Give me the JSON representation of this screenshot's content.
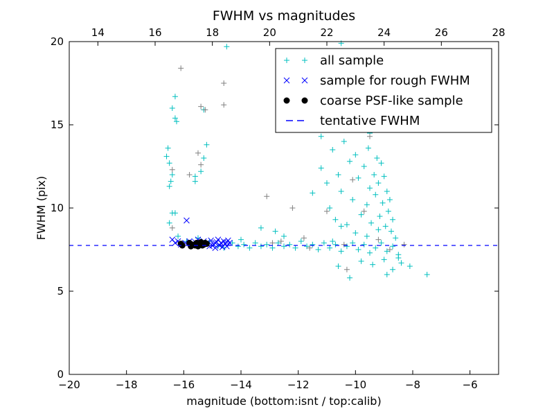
{
  "chart_data": {
    "type": "scatter",
    "title": "FWHM vs magnitudes",
    "xlabel": "magnitude (bottom:isnt / top:calib)",
    "ylabel": "FWHM (pix)",
    "xlim": [
      -20,
      -5
    ],
    "ylim": [
      0,
      20
    ],
    "x_ticks": [
      -20,
      -18,
      -16,
      -14,
      -12,
      -10,
      -8,
      -6
    ],
    "x_tick_labels": [
      "−20",
      "−18",
      "−16",
      "−14",
      "−12",
      "−10",
      "−8",
      "−6"
    ],
    "y_ticks": [
      0,
      5,
      10,
      15,
      20
    ],
    "y_tick_labels": [
      "0",
      "5",
      "10",
      "15",
      "20"
    ],
    "top_axis": {
      "offset": 33,
      "ticks": [
        14,
        16,
        18,
        20,
        22,
        24,
        26,
        28
      ],
      "tick_labels": [
        "14",
        "16",
        "18",
        "20",
        "22",
        "24",
        "26",
        "28"
      ]
    },
    "grid": false,
    "legend_position": "top-right",
    "tentative_fwhm": 7.75,
    "series": [
      {
        "name": "all sample",
        "marker": "plus",
        "color": "#00BFBF",
        "points": [
          [
            -16.6,
            13.1
          ],
          [
            -16.55,
            13.6
          ],
          [
            -16.5,
            12.7
          ],
          [
            -16.4,
            12.0
          ],
          [
            -16.45,
            11.6
          ],
          [
            -16.5,
            11.3
          ],
          [
            -16.3,
            16.7
          ],
          [
            -16.3,
            15.4
          ],
          [
            -16.25,
            15.2
          ],
          [
            -16.4,
            16.0
          ],
          [
            -16.5,
            9.1
          ],
          [
            -16.4,
            9.7
          ],
          [
            -16.3,
            9.7
          ],
          [
            -15.6,
            11.9
          ],
          [
            -15.6,
            11.6
          ],
          [
            -15.4,
            12.2
          ],
          [
            -15.3,
            13.0
          ],
          [
            -15.2,
            13.8
          ],
          [
            -15.3,
            15.9
          ],
          [
            -16.2,
            8.3
          ],
          [
            -15.9,
            8.0
          ],
          [
            -15.5,
            8.2
          ],
          [
            -15.1,
            8.0
          ],
          [
            -14.8,
            7.7
          ],
          [
            -14.6,
            7.6
          ],
          [
            -14.3,
            7.9
          ],
          [
            -14.1,
            7.7
          ],
          [
            -13.9,
            7.8
          ],
          [
            -13.7,
            7.6
          ],
          [
            -13.5,
            7.9
          ],
          [
            -13.3,
            7.7
          ],
          [
            -13.1,
            7.8
          ],
          [
            -12.9,
            7.6
          ],
          [
            -12.7,
            7.9
          ],
          [
            -12.5,
            7.7
          ],
          [
            -12.3,
            7.8
          ],
          [
            -12.1,
            7.6
          ],
          [
            -11.9,
            8.0
          ],
          [
            -11.7,
            7.7
          ],
          [
            -11.5,
            7.8
          ],
          [
            -11.3,
            7.5
          ],
          [
            -11.1,
            7.9
          ],
          [
            -10.9,
            7.6
          ],
          [
            -10.7,
            7.8
          ],
          [
            -10.5,
            7.4
          ],
          [
            -10.3,
            7.7
          ],
          [
            -10.1,
            7.9
          ],
          [
            -9.9,
            7.5
          ],
          [
            -9.7,
            7.8
          ],
          [
            -9.5,
            7.3
          ],
          [
            -9.3,
            7.6
          ],
          [
            -9.1,
            7.9
          ],
          [
            -8.9,
            7.4
          ],
          [
            -8.7,
            7.7
          ],
          [
            -8.5,
            7.2
          ],
          [
            -13.3,
            8.8
          ],
          [
            -12.8,
            8.6
          ],
          [
            -12.5,
            8.3
          ],
          [
            -14.0,
            8.1
          ],
          [
            -11.5,
            10.9
          ],
          [
            -11.2,
            12.4
          ],
          [
            -11.0,
            11.5
          ],
          [
            -10.9,
            10.0
          ],
          [
            -10.8,
            13.5
          ],
          [
            -10.7,
            9.3
          ],
          [
            -10.6,
            12.0
          ],
          [
            -10.5,
            11.0
          ],
          [
            -10.4,
            14.0
          ],
          [
            -10.3,
            9.0
          ],
          [
            -10.2,
            12.8
          ],
          [
            -10.1,
            10.5
          ],
          [
            -10.0,
            13.2
          ],
          [
            -9.9,
            11.8
          ],
          [
            -9.8,
            9.6
          ],
          [
            -9.75,
            14.8
          ],
          [
            -9.7,
            12.5
          ],
          [
            -9.6,
            10.2
          ],
          [
            -9.55,
            13.6
          ],
          [
            -9.5,
            11.2
          ],
          [
            -9.45,
            9.1
          ],
          [
            -9.4,
            15.7
          ],
          [
            -9.35,
            12.0
          ],
          [
            -9.3,
            10.8
          ],
          [
            -9.25,
            13.0
          ],
          [
            -9.2,
            11.5
          ],
          [
            -9.15,
            9.5
          ],
          [
            -9.1,
            12.7
          ],
          [
            -9.05,
            10.3
          ],
          [
            -9.0,
            11.9
          ],
          [
            -8.95,
            8.9
          ],
          [
            -8.9,
            11.0
          ],
          [
            -8.85,
            9.8
          ],
          [
            -8.8,
            10.5
          ],
          [
            -8.75,
            8.6
          ],
          [
            -8.7,
            9.3
          ],
          [
            -8.6,
            8.2
          ],
          [
            -8.5,
            7.0
          ],
          [
            -10.0,
            8.5
          ],
          [
            -9.6,
            8.3
          ],
          [
            -9.2,
            8.7
          ],
          [
            -10.5,
            8.9
          ],
          [
            -10.8,
            8.0
          ],
          [
            -9.8,
            6.8
          ],
          [
            -9.4,
            6.6
          ],
          [
            -9.0,
            6.9
          ],
          [
            -8.7,
            6.3
          ],
          [
            -8.4,
            6.7
          ],
          [
            -10.6,
            6.5
          ],
          [
            -8.9,
            6.0
          ],
          [
            -9.9,
            15.3
          ],
          [
            -9.5,
            14.5
          ],
          [
            -10.3,
            16.4
          ],
          [
            -9.8,
            17.0
          ],
          [
            -10.6,
            15.5
          ],
          [
            -7.5,
            6.0
          ],
          [
            -10.2,
            5.8
          ],
          [
            -8.1,
            6.5
          ],
          [
            -14.5,
            19.7
          ],
          [
            -11.7,
            19.4
          ],
          [
            -10.5,
            19.9
          ],
          [
            -11.2,
            14.3
          ]
        ]
      },
      {
        "name": "",
        "marker": "plus",
        "color": "#808080",
        "points": [
          [
            -16.1,
            18.4
          ],
          [
            -15.4,
            16.1
          ],
          [
            -15.25,
            15.9
          ],
          [
            -14.6,
            17.5
          ],
          [
            -14.6,
            16.2
          ],
          [
            -15.5,
            13.3
          ],
          [
            -15.4,
            12.6
          ],
          [
            -16.4,
            12.3
          ],
          [
            -16.4,
            8.8
          ],
          [
            -15.8,
            12.0
          ],
          [
            -13.1,
            10.7
          ],
          [
            -12.2,
            10.0
          ],
          [
            -12.6,
            8.0
          ],
          [
            -11.0,
            9.8
          ],
          [
            -10.3,
            6.3
          ],
          [
            -10.4,
            7.8
          ],
          [
            -9.5,
            14.3
          ],
          [
            -9.2,
            8.1
          ],
          [
            -8.8,
            7.5
          ],
          [
            -8.3,
            7.8
          ],
          [
            -11.8,
            8.2
          ],
          [
            -12.9,
            7.9
          ],
          [
            -10.1,
            11.7
          ],
          [
            -9.7,
            9.8
          ],
          [
            -10.8,
            17.2
          ],
          [
            -11.6,
            7.6
          ]
        ]
      },
      {
        "name": "sample for rough FWHM",
        "marker": "x",
        "color": "#0000FF",
        "points": [
          [
            -16.4,
            8.1
          ],
          [
            -16.3,
            7.9
          ],
          [
            -16.2,
            8.0
          ],
          [
            -16.1,
            7.8
          ],
          [
            -15.9,
            9.25
          ],
          [
            -15.95,
            7.9
          ],
          [
            -15.8,
            8.0
          ],
          [
            -15.7,
            7.85
          ],
          [
            -15.6,
            7.95
          ],
          [
            -15.5,
            8.1
          ],
          [
            -15.4,
            7.8
          ],
          [
            -15.3,
            8.0
          ],
          [
            -15.2,
            7.9
          ],
          [
            -15.1,
            7.7
          ],
          [
            -15.05,
            8.05
          ],
          [
            -14.95,
            7.8
          ],
          [
            -14.9,
            7.6
          ],
          [
            -14.85,
            7.95
          ],
          [
            -14.8,
            8.1
          ],
          [
            -14.75,
            7.75
          ],
          [
            -14.7,
            7.9
          ],
          [
            -14.65,
            7.65
          ],
          [
            -14.6,
            8.0
          ],
          [
            -14.55,
            7.85
          ],
          [
            -14.5,
            7.7
          ],
          [
            -14.45,
            8.05
          ],
          [
            -14.4,
            7.9
          ],
          [
            -14.9,
            7.9
          ],
          [
            -15.0,
            7.75
          ],
          [
            -14.5,
            7.95
          ]
        ]
      },
      {
        "name": "coarse PSF-like sample",
        "marker": "circle",
        "color": "#000000",
        "points": [
          [
            -16.1,
            7.85
          ],
          [
            -16.05,
            7.75
          ],
          [
            -15.8,
            7.9
          ],
          [
            -15.75,
            7.7
          ],
          [
            -15.7,
            7.8
          ],
          [
            -15.6,
            7.75
          ],
          [
            -15.55,
            7.9
          ],
          [
            -15.5,
            7.7
          ],
          [
            -15.45,
            7.85
          ],
          [
            -15.4,
            7.95
          ],
          [
            -15.35,
            7.75
          ],
          [
            -15.3,
            7.8
          ],
          [
            -15.25,
            7.9
          ],
          [
            -15.2,
            7.85
          ]
        ]
      },
      {
        "name": "tentative FWHM",
        "marker": "dashed-line",
        "color": "#0000FF",
        "value": 7.75
      }
    ]
  }
}
